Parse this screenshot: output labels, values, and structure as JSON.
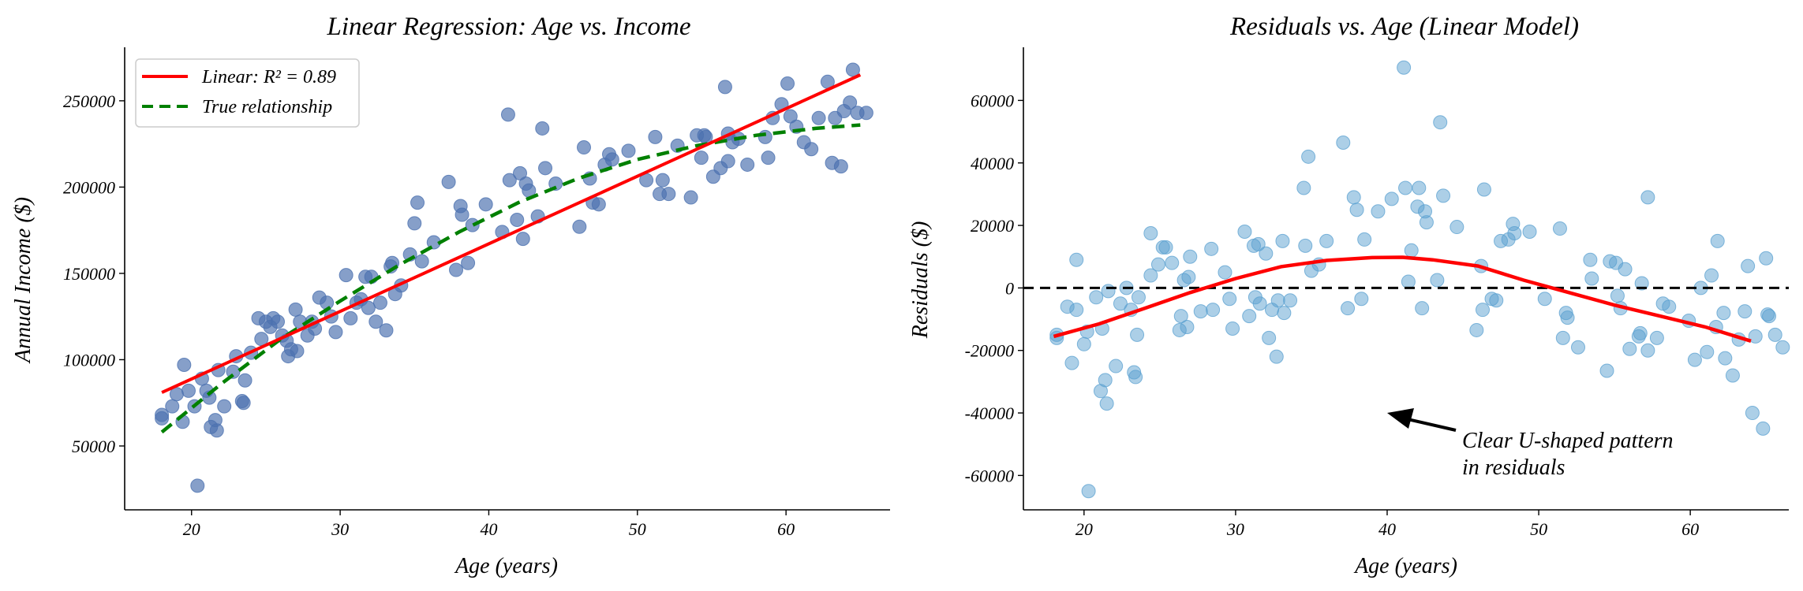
{
  "chart_data": [
    {
      "type": "scatter",
      "title": "Linear Regression: Age vs. Income",
      "xlabel": "Age (years)",
      "ylabel": "Annual Income ($)",
      "xlim": [
        15.5,
        67
      ],
      "ylim": [
        13000,
        281000
      ],
      "xticks": [
        20,
        30,
        40,
        50,
        60
      ],
      "yticks": [
        50000,
        100000,
        150000,
        200000,
        250000
      ],
      "grid": false,
      "legend_position": "top-left",
      "colors": {
        "points": "#4c72b0",
        "linear": "#ff0000",
        "true": "#008000"
      },
      "legend": [
        {
          "label": "Linear: R² = 0.89",
          "style": "solid",
          "color": "#ff0000"
        },
        {
          "label": "True relationship",
          "style": "dashed",
          "color": "#008000"
        }
      ],
      "lines": [
        {
          "name": "Linear: R² = 0.89",
          "x": [
            18,
            65
          ],
          "y": [
            81000,
            265000
          ]
        },
        {
          "name": "True relationship",
          "x": [
            18,
            22,
            26,
            30,
            34,
            38,
            42,
            46,
            50,
            54,
            58,
            62,
            65
          ],
          "y": [
            58000,
            86000,
            112000,
            134000,
            155000,
            174000,
            191000,
            205000,
            216000,
            224000,
            230000,
            234000,
            236000
          ]
        }
      ],
      "points": [
        [
          18,
          68000
        ],
        [
          18,
          66000
        ],
        [
          18.7,
          73000
        ],
        [
          19,
          80000
        ],
        [
          19.4,
          64000
        ],
        [
          19.5,
          97000
        ],
        [
          19.8,
          82000
        ],
        [
          20.2,
          73000
        ],
        [
          20.4,
          27000
        ],
        [
          20.7,
          89000
        ],
        [
          21,
          82000
        ],
        [
          21.2,
          78000
        ],
        [
          21.3,
          61000
        ],
        [
          21.6,
          65000
        ],
        [
          21.7,
          59000
        ],
        [
          21.8,
          94000
        ],
        [
          22.2,
          73000
        ],
        [
          22.8,
          93000
        ],
        [
          23,
          102000
        ],
        [
          23.4,
          76000
        ],
        [
          23.5,
          75000
        ],
        [
          23.6,
          88000
        ],
        [
          24,
          104000
        ],
        [
          24.5,
          124000
        ],
        [
          24.7,
          112000
        ],
        [
          25,
          122000
        ],
        [
          25.3,
          119000
        ],
        [
          25.5,
          124000
        ],
        [
          25.8,
          122000
        ],
        [
          26.1,
          114000
        ],
        [
          26.4,
          111000
        ],
        [
          26.5,
          102000
        ],
        [
          26.7,
          106000
        ],
        [
          27.1,
          105000
        ],
        [
          27,
          129000
        ],
        [
          27.3,
          122000
        ],
        [
          27.8,
          114000
        ],
        [
          28.1,
          122000
        ],
        [
          28.3,
          118000
        ],
        [
          28.6,
          136000
        ],
        [
          29.1,
          133000
        ],
        [
          29.4,
          125000
        ],
        [
          29.7,
          116000
        ],
        [
          30.4,
          149000
        ],
        [
          30.7,
          124000
        ],
        [
          31.1,
          133000
        ],
        [
          31.4,
          135000
        ],
        [
          31.7,
          148000
        ],
        [
          31.9,
          130000
        ],
        [
          32.1,
          148000
        ],
        [
          32.4,
          122000
        ],
        [
          32.7,
          133000
        ],
        [
          33.1,
          117000
        ],
        [
          33.4,
          154000
        ],
        [
          33.5,
          156000
        ],
        [
          33.7,
          138000
        ],
        [
          34.1,
          143000
        ],
        [
          34.7,
          161000
        ],
        [
          35,
          179000
        ],
        [
          35.2,
          191000
        ],
        [
          35.5,
          157000
        ],
        [
          36.3,
          168000
        ],
        [
          37.3,
          203000
        ],
        [
          37.8,
          152000
        ],
        [
          38.1,
          189000
        ],
        [
          38.2,
          184000
        ],
        [
          38.6,
          156000
        ],
        [
          38.9,
          178000
        ],
        [
          39.8,
          190000
        ],
        [
          40.9,
          174000
        ],
        [
          41.3,
          242000
        ],
        [
          41.4,
          204000
        ],
        [
          41.9,
          181000
        ],
        [
          42.1,
          208000
        ],
        [
          42.3,
          170000
        ],
        [
          42.5,
          202000
        ],
        [
          42.7,
          198000
        ],
        [
          43.3,
          183000
        ],
        [
          43.6,
          234000
        ],
        [
          43.8,
          211000
        ],
        [
          44.5,
          202000
        ],
        [
          46.1,
          177000
        ],
        [
          46.4,
          223000
        ],
        [
          46.8,
          205000
        ],
        [
          47,
          191000
        ],
        [
          47.4,
          190000
        ],
        [
          47.8,
          213000
        ],
        [
          48.1,
          219000
        ],
        [
          48.3,
          216000
        ],
        [
          49.4,
          221000
        ],
        [
          50.6,
          204000
        ],
        [
          51.2,
          229000
        ],
        [
          51.5,
          196000
        ],
        [
          51.7,
          204000
        ],
        [
          52.1,
          196000
        ],
        [
          52.7,
          224000
        ],
        [
          53.6,
          194000
        ],
        [
          54,
          230000
        ],
        [
          54.3,
          217000
        ],
        [
          54.5,
          230000
        ],
        [
          54.6,
          229000
        ],
        [
          55.1,
          206000
        ],
        [
          55.6,
          211000
        ],
        [
          55.9,
          258000
        ],
        [
          56.1,
          215000
        ],
        [
          56.1,
          231000
        ],
        [
          56.4,
          226000
        ],
        [
          56.8,
          228000
        ],
        [
          57.4,
          213000
        ],
        [
          58.6,
          229000
        ],
        [
          58.8,
          217000
        ],
        [
          59.1,
          240000
        ],
        [
          59.7,
          248000
        ],
        [
          60.1,
          260000
        ],
        [
          60.3,
          241000
        ],
        [
          60.7,
          235000
        ],
        [
          61.2,
          226000
        ],
        [
          61.7,
          222000
        ],
        [
          62.2,
          240000
        ],
        [
          62.8,
          261000
        ],
        [
          63.1,
          214000
        ],
        [
          63.3,
          240000
        ],
        [
          63.7,
          212000
        ],
        [
          63.9,
          244000
        ],
        [
          64.3,
          249000
        ],
        [
          64.5,
          268000
        ],
        [
          64.8,
          243000
        ],
        [
          65.4,
          243000
        ]
      ]
    },
    {
      "type": "scatter",
      "title": "Residuals vs. Age (Linear Model)",
      "xlabel": "Age (years)",
      "ylabel": "Residuals ($)",
      "xlim": [
        16,
        66.5
      ],
      "ylim": [
        -71000,
        77000
      ],
      "xticks": [
        20,
        30,
        40,
        50,
        60
      ],
      "yticks": [
        -60000,
        -40000,
        -20000,
        0,
        20000,
        40000,
        60000
      ],
      "grid": false,
      "colors": {
        "points": "#5aa0d0",
        "smooth": "#ff0000",
        "zero": "#000000"
      },
      "zero_line": 0,
      "lines": [
        {
          "name": "smoothed residuals",
          "x": [
            18,
            21,
            24,
            27,
            30,
            33,
            36,
            39,
            41,
            43,
            46,
            49,
            52,
            55,
            58,
            61,
            64
          ],
          "y": [
            -15500,
            -11500,
            -6500,
            -1500,
            3000,
            6800,
            8800,
            9700,
            9800,
            9000,
            7000,
            2500,
            -1500,
            -5500,
            -9000,
            -12500,
            -17000
          ]
        }
      ],
      "annotation": {
        "text_lines": [
          "Clear U-shaped pattern",
          "in residuals"
        ],
        "text_xy": [
          45,
          -49000
        ],
        "arrow_to": [
          40,
          -40000
        ]
      },
      "points": [
        [
          18.2,
          -15000
        ],
        [
          18.2,
          -16000
        ],
        [
          18.9,
          -6000
        ],
        [
          19.2,
          -24000
        ],
        [
          19.5,
          9000
        ],
        [
          19.5,
          -7000
        ],
        [
          20,
          -18000
        ],
        [
          20.2,
          -14000
        ],
        [
          20.3,
          -65000
        ],
        [
          20.8,
          -3000
        ],
        [
          21.1,
          -33000
        ],
        [
          21.2,
          -13000
        ],
        [
          21.4,
          -29500
        ],
        [
          21.5,
          -37000
        ],
        [
          21.6,
          -1000
        ],
        [
          22.1,
          -25000
        ],
        [
          22.4,
          -5000
        ],
        [
          22.8,
          0
        ],
        [
          23.1,
          -7000
        ],
        [
          23.3,
          -27000
        ],
        [
          23.4,
          -28500
        ],
        [
          23.5,
          -15000
        ],
        [
          23.6,
          -3000
        ],
        [
          24.4,
          17500
        ],
        [
          24.4,
          4000
        ],
        [
          24.9,
          7500
        ],
        [
          25.2,
          13000
        ],
        [
          25.4,
          13000
        ],
        [
          25.8,
          8000
        ],
        [
          26.3,
          -13500
        ],
        [
          26.4,
          -9000
        ],
        [
          26.6,
          2500
        ],
        [
          26.8,
          -12500
        ],
        [
          26.9,
          3500
        ],
        [
          27,
          10000
        ],
        [
          27.7,
          -7500
        ],
        [
          28.4,
          12500
        ],
        [
          28.5,
          -7000
        ],
        [
          29.3,
          5000
        ],
        [
          29.6,
          -3500
        ],
        [
          29.8,
          -13000
        ],
        [
          30.6,
          18000
        ],
        [
          30.9,
          -9000
        ],
        [
          31.2,
          13500
        ],
        [
          31.3,
          -3000
        ],
        [
          31.5,
          14000
        ],
        [
          31.6,
          -5000
        ],
        [
          32,
          11000
        ],
        [
          32.2,
          -16000
        ],
        [
          32.4,
          -7000
        ],
        [
          32.7,
          -22000
        ],
        [
          32.8,
          -4000
        ],
        [
          33.1,
          15000
        ],
        [
          33.2,
          -8000
        ],
        [
          33.6,
          -4000
        ],
        [
          34.5,
          32000
        ],
        [
          34.6,
          13500
        ],
        [
          34.8,
          42000
        ],
        [
          35,
          5500
        ],
        [
          35.5,
          7500
        ],
        [
          36,
          15000
        ],
        [
          37.1,
          46500
        ],
        [
          37.4,
          -6500
        ],
        [
          37.8,
          29000
        ],
        [
          38,
          25000
        ],
        [
          38.3,
          -3500
        ],
        [
          38.5,
          15500
        ],
        [
          39.4,
          24500
        ],
        [
          40.3,
          28500
        ],
        [
          41.1,
          70500
        ],
        [
          41.2,
          32000
        ],
        [
          41.4,
          2000
        ],
        [
          41.6,
          12000
        ],
        [
          42,
          26000
        ],
        [
          42.1,
          32000
        ],
        [
          42.3,
          -6500
        ],
        [
          42.5,
          24500
        ],
        [
          42.6,
          21000
        ],
        [
          43.3,
          2500
        ],
        [
          43.5,
          53000
        ],
        [
          43.7,
          29500
        ],
        [
          44.6,
          19500
        ],
        [
          45.9,
          -13500
        ],
        [
          46.2,
          7000
        ],
        [
          46.3,
          -7000
        ],
        [
          46.4,
          31500
        ],
        [
          46.9,
          -3500
        ],
        [
          47.2,
          -4000
        ],
        [
          47.5,
          15000
        ],
        [
          48,
          15500
        ],
        [
          48.3,
          20500
        ],
        [
          48.4,
          17500
        ],
        [
          49.4,
          18000
        ],
        [
          50.4,
          -3500
        ],
        [
          51.4,
          19000
        ],
        [
          51.6,
          -16000
        ],
        [
          51.8,
          -8000
        ],
        [
          51.9,
          -9500
        ],
        [
          52.6,
          -19000
        ],
        [
          53.4,
          9000
        ],
        [
          53.5,
          3000
        ],
        [
          54.5,
          -26500
        ],
        [
          54.7,
          8500
        ],
        [
          55.1,
          8000
        ],
        [
          55.2,
          -2500
        ],
        [
          55.4,
          -6500
        ],
        [
          55.7,
          6000
        ],
        [
          56,
          -19500
        ],
        [
          56.6,
          -15500
        ],
        [
          56.7,
          -14500
        ],
        [
          56.8,
          1500
        ],
        [
          57.2,
          -20000
        ],
        [
          57.2,
          29000
        ],
        [
          57.8,
          -16000
        ],
        [
          58.2,
          -5000
        ],
        [
          58.6,
          -6000
        ],
        [
          59.9,
          -10500
        ],
        [
          60.3,
          -23000
        ],
        [
          60.7,
          0
        ],
        [
          61.1,
          -20500
        ],
        [
          61.4,
          4000
        ],
        [
          61.7,
          -12500
        ],
        [
          61.8,
          15000
        ],
        [
          62.2,
          -8000
        ],
        [
          62.3,
          -22500
        ],
        [
          62.8,
          -28000
        ],
        [
          63.2,
          -16500
        ],
        [
          63.6,
          -7500
        ],
        [
          63.8,
          7000
        ],
        [
          64.1,
          -40000
        ],
        [
          64.3,
          -15500
        ],
        [
          64.8,
          -45000
        ],
        [
          65,
          9500
        ],
        [
          65.1,
          -8500
        ],
        [
          65.2,
          -9000
        ],
        [
          65.6,
          -15000
        ],
        [
          66.1,
          -19000
        ]
      ]
    }
  ]
}
